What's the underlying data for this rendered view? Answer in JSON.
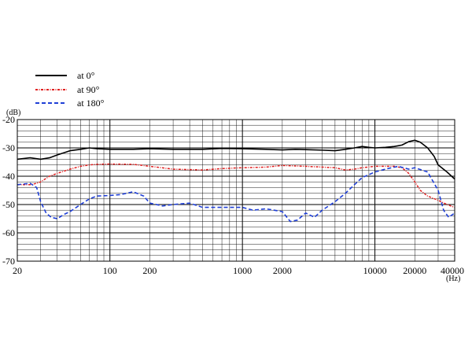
{
  "chart_data": {
    "type": "line",
    "title": "",
    "xlabel": "",
    "ylabel": "",
    "x_unit": "(Hz)",
    "y_unit": "(dB)",
    "xscale": "log",
    "xlim": [
      20,
      40000
    ],
    "ylim": [
      -70,
      -20
    ],
    "x_ticks": [
      20,
      100,
      200,
      1000,
      2000,
      10000,
      20000,
      40000
    ],
    "x_tick_labels": [
      "20",
      "100",
      "200",
      "1000",
      "2000",
      "10000",
      "20000",
      "40000"
    ],
    "y_ticks": [
      -20,
      -30,
      -40,
      -50,
      -60,
      -70
    ],
    "y_tick_labels": [
      "-20",
      "-30",
      "-40",
      "-50",
      "-60",
      "-70"
    ],
    "grid": true,
    "legend_position": "top-left",
    "series": [
      {
        "name": "at 0°",
        "color": "#000000",
        "style": "solid",
        "x": [
          20,
          25,
          30,
          35,
          40,
          50,
          60,
          70,
          80,
          100,
          150,
          200,
          300,
          500,
          700,
          1000,
          1500,
          2000,
          2500,
          3000,
          4000,
          5000,
          6000,
          7000,
          8000,
          9000,
          10000,
          12000,
          14000,
          16000,
          18000,
          20000,
          22000,
          25000,
          28000,
          30000,
          35000,
          40000
        ],
        "y": [
          -34,
          -33.5,
          -34,
          -33.5,
          -32.5,
          -31,
          -30.5,
          -30,
          -30.3,
          -30.5,
          -30.5,
          -30.3,
          -30.5,
          -30.5,
          -30.2,
          -30.3,
          -30.5,
          -30.7,
          -30.5,
          -30.6,
          -30.8,
          -31,
          -30.5,
          -30,
          -29.5,
          -29.8,
          -30,
          -29.8,
          -29.5,
          -29,
          -27.8,
          -27.3,
          -28,
          -30,
          -33,
          -36,
          -38.5,
          -41
        ]
      },
      {
        "name": "at 90°",
        "color": "#e02020",
        "style": "dash-dot",
        "x": [
          20,
          25,
          28,
          30,
          35,
          40,
          50,
          60,
          70,
          80,
          100,
          150,
          200,
          300,
          500,
          700,
          1000,
          1500,
          2000,
          3000,
          5000,
          6000,
          7000,
          8000,
          10000,
          12000,
          14000,
          16000,
          18000,
          20000,
          22000,
          25000,
          30000,
          35000,
          40000
        ],
        "y": [
          -43,
          -43,
          -42.5,
          -42,
          -40,
          -39,
          -37.5,
          -36.5,
          -36,
          -35.8,
          -35.7,
          -35.8,
          -36.5,
          -37.5,
          -37.8,
          -37.3,
          -37,
          -36.8,
          -36.2,
          -36.5,
          -37,
          -37.8,
          -37.5,
          -37,
          -36.5,
          -36.5,
          -36.5,
          -37,
          -39,
          -42,
          -45,
          -47,
          -48.5,
          -50,
          -51
        ]
      },
      {
        "name": "at 180°",
        "color": "#1f3fd6",
        "style": "dashed",
        "x": [
          20,
          25,
          28,
          30,
          33,
          36,
          40,
          45,
          50,
          60,
          70,
          80,
          100,
          120,
          150,
          180,
          200,
          250,
          300,
          400,
          500,
          700,
          1000,
          1200,
          1500,
          2000,
          2300,
          2600,
          3000,
          3500,
          4000,
          5000,
          6000,
          7000,
          8000,
          10000,
          12000,
          15000,
          18000,
          20000,
          25000,
          30000,
          33000,
          36000,
          40000
        ],
        "y": [
          -43,
          -42.5,
          -44,
          -49,
          -53,
          -54.5,
          -55,
          -53.5,
          -52.5,
          -50,
          -48,
          -47,
          -46.8,
          -46.5,
          -45.5,
          -47,
          -49.5,
          -50.5,
          -50,
          -49.5,
          -51,
          -51,
          -51,
          -52,
          -51.5,
          -52.5,
          -56,
          -55.5,
          -53,
          -54.5,
          -52,
          -49,
          -46,
          -43,
          -40.5,
          -38.5,
          -37.5,
          -36.5,
          -37.5,
          -37,
          -38.5,
          -45,
          -52,
          -54.5,
          -53
        ]
      }
    ]
  }
}
